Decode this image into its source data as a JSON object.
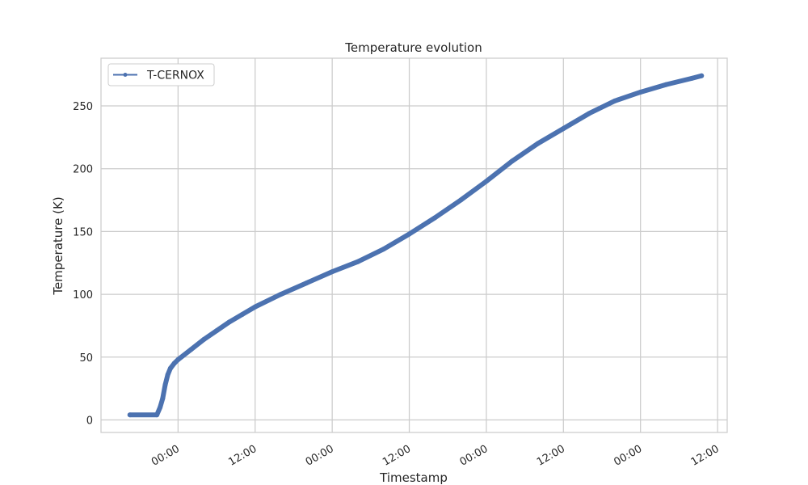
{
  "chart_data": {
    "type": "line",
    "title": "Temperature evolution",
    "xlabel": "Timestamp",
    "ylabel": "Temperature (K)",
    "x_ticks": [
      "00:00",
      "12:00",
      "00:00",
      "12:00",
      "00:00",
      "12:00",
      "00:00",
      "12:00"
    ],
    "x_tick_hours": [
      0,
      12,
      24,
      36,
      48,
      60,
      72,
      84
    ],
    "xlim_hours": [
      -12,
      85.5
    ],
    "y_ticks": [
      0,
      50,
      100,
      150,
      200,
      250
    ],
    "ylim": [
      -10,
      288
    ],
    "grid": true,
    "legend_position": "top-left",
    "colors": {
      "series": "#4c72b0",
      "grid": "#cccccc",
      "axes": "#cccccc"
    },
    "series": [
      {
        "name": "T-CERNOX",
        "marker": "point",
        "points": [
          {
            "x": -7.5,
            "y": 4
          },
          {
            "x": -3.3,
            "y": 4
          },
          {
            "x": -2.8,
            "y": 10
          },
          {
            "x": -2.4,
            "y": 17
          },
          {
            "x": -2.0,
            "y": 28
          },
          {
            "x": -1.6,
            "y": 36
          },
          {
            "x": -1.2,
            "y": 41
          },
          {
            "x": -0.6,
            "y": 45
          },
          {
            "x": 0,
            "y": 48
          },
          {
            "x": 2,
            "y": 56
          },
          {
            "x": 4,
            "y": 64
          },
          {
            "x": 6,
            "y": 71
          },
          {
            "x": 8,
            "y": 78
          },
          {
            "x": 10,
            "y": 84
          },
          {
            "x": 12,
            "y": 90
          },
          {
            "x": 16,
            "y": 100
          },
          {
            "x": 20,
            "y": 109
          },
          {
            "x": 24,
            "y": 118
          },
          {
            "x": 28,
            "y": 126
          },
          {
            "x": 32,
            "y": 136
          },
          {
            "x": 36,
            "y": 148
          },
          {
            "x": 40,
            "y": 161
          },
          {
            "x": 44,
            "y": 175
          },
          {
            "x": 48,
            "y": 190
          },
          {
            "x": 52,
            "y": 206
          },
          {
            "x": 56,
            "y": 220
          },
          {
            "x": 60,
            "y": 232
          },
          {
            "x": 64,
            "y": 244
          },
          {
            "x": 68,
            "y": 254
          },
          {
            "x": 72,
            "y": 261
          },
          {
            "x": 76,
            "y": 267
          },
          {
            "x": 80,
            "y": 272
          },
          {
            "x": 81.5,
            "y": 274
          }
        ]
      }
    ]
  }
}
